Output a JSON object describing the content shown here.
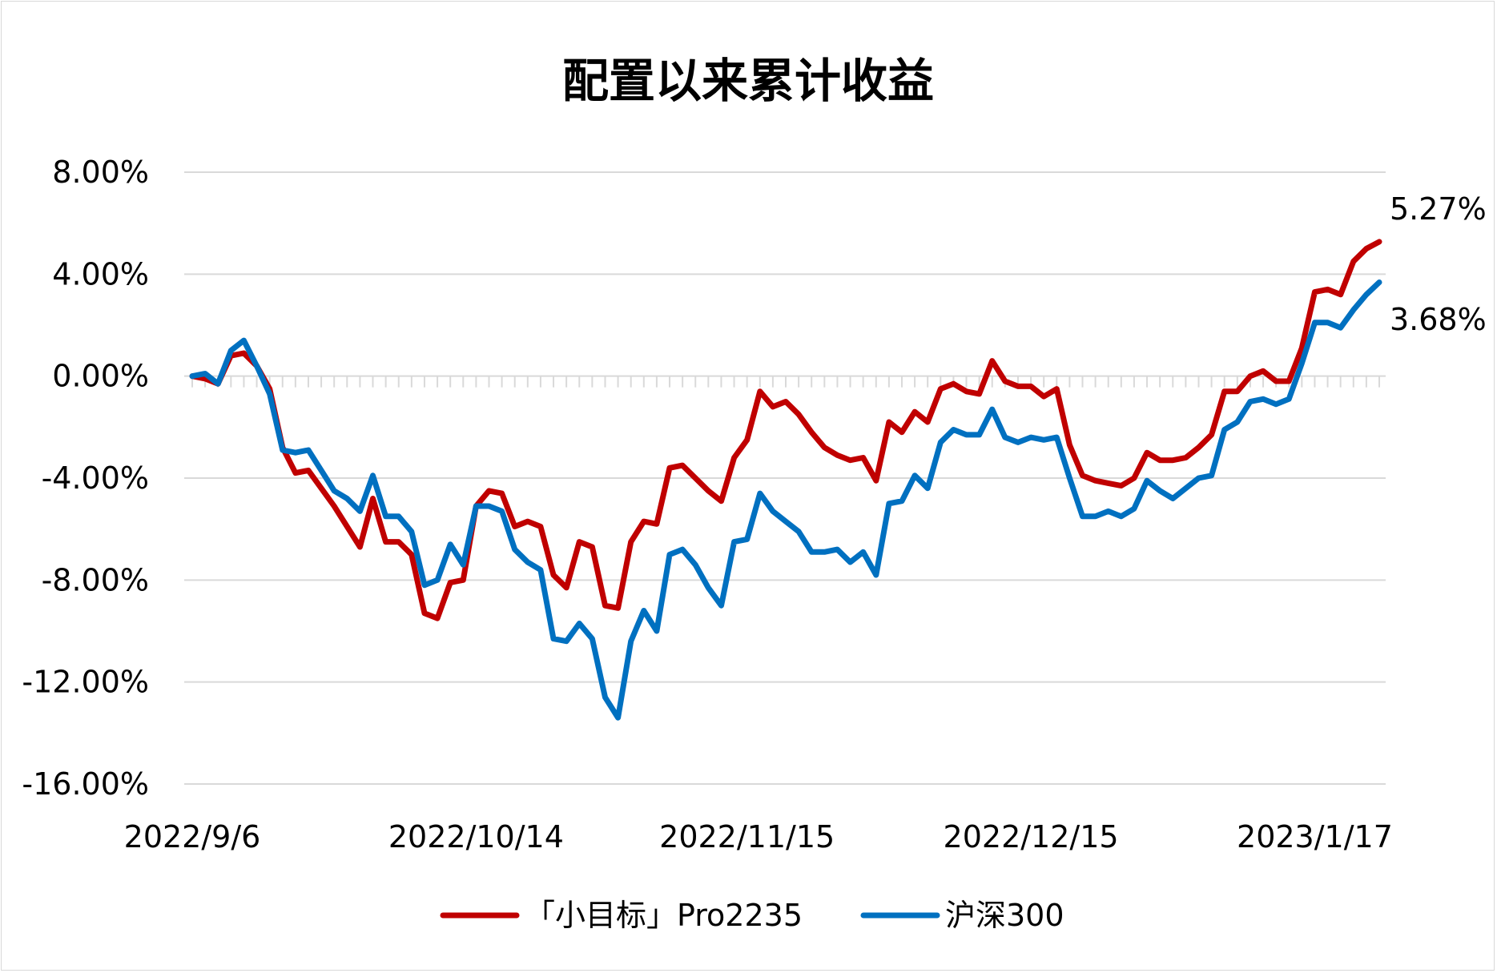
{
  "chart_data": {
    "type": "line",
    "title": "配置以来累计收益",
    "xlabel": "",
    "ylabel": "",
    "ylim": [
      -16,
      8
    ],
    "yticks": [
      8,
      4,
      0,
      -4,
      -8,
      -12,
      -16
    ],
    "ytick_labels": [
      "8.00%",
      "4.00%",
      "0.00%",
      "-4.00%",
      "-8.00%",
      "-12.00%",
      "-16.00%"
    ],
    "xtick_labels": [
      {
        "label": "2022/9/6",
        "index": 0
      },
      {
        "label": "2022/10/14",
        "index": 22
      },
      {
        "label": "2022/11/15",
        "index": 43
      },
      {
        "label": "2022/12/15",
        "index": 65
      },
      {
        "label": "2023/1/17",
        "index": 87
      }
    ],
    "grid": true,
    "legend_position": "bottom",
    "series": [
      {
        "name": "「小目标」Pro2235",
        "color": "#c00000",
        "end_label": "5.27%",
        "values": [
          0.0,
          -0.1,
          -0.3,
          0.8,
          0.9,
          0.4,
          -0.5,
          -2.8,
          -3.8,
          -3.7,
          -4.4,
          -5.1,
          -5.9,
          -6.7,
          -4.8,
          -6.5,
          -6.5,
          -7.0,
          -9.3,
          -9.5,
          -8.1,
          -8.0,
          -5.1,
          -4.5,
          -4.6,
          -5.9,
          -5.7,
          -5.9,
          -7.8,
          -8.3,
          -6.5,
          -6.7,
          -9.0,
          -9.1,
          -6.5,
          -5.7,
          -5.8,
          -3.6,
          -3.5,
          -4.0,
          -4.5,
          -4.9,
          -3.2,
          -2.5,
          -0.6,
          -1.2,
          -1.0,
          -1.5,
          -2.2,
          -2.8,
          -3.1,
          -3.3,
          -3.2,
          -4.1,
          -1.8,
          -2.2,
          -1.4,
          -1.8,
          -0.5,
          -0.3,
          -0.6,
          -0.7,
          0.6,
          -0.2,
          -0.4,
          -0.4,
          -0.8,
          -0.5,
          -2.7,
          -3.9,
          -4.1,
          -4.2,
          -4.3,
          -4.0,
          -3.0,
          -3.3,
          -3.3,
          -3.2,
          -2.8,
          -2.3,
          -0.6,
          -0.6,
          0.0,
          0.2,
          -0.2,
          -0.2,
          1.1,
          3.3,
          3.4,
          3.2,
          4.5,
          5.0,
          5.27
        ]
      },
      {
        "name": "沪深300",
        "color": "#0070c0",
        "end_label": "3.68%",
        "values": [
          0.0,
          0.1,
          -0.3,
          1.0,
          1.4,
          0.4,
          -0.7,
          -2.9,
          -3.0,
          -2.9,
          -3.7,
          -4.5,
          -4.8,
          -5.3,
          -3.9,
          -5.5,
          -5.5,
          -6.1,
          -8.2,
          -8.0,
          -6.6,
          -7.4,
          -5.1,
          -5.1,
          -5.3,
          -6.8,
          -7.3,
          -7.6,
          -10.3,
          -10.4,
          -9.7,
          -10.3,
          -12.6,
          -13.4,
          -10.4,
          -9.2,
          -10.0,
          -7.0,
          -6.8,
          -7.4,
          -8.3,
          -9.0,
          -6.5,
          -6.4,
          -4.6,
          -5.3,
          -5.7,
          -6.1,
          -6.9,
          -6.9,
          -6.8,
          -7.3,
          -6.9,
          -7.8,
          -5.0,
          -4.9,
          -3.9,
          -4.4,
          -2.6,
          -2.1,
          -2.3,
          -2.3,
          -1.3,
          -2.4,
          -2.6,
          -2.4,
          -2.5,
          -2.4,
          -4.0,
          -5.5,
          -5.5,
          -5.3,
          -5.5,
          -5.2,
          -4.1,
          -4.5,
          -4.8,
          -4.4,
          -4.0,
          -3.9,
          -2.1,
          -1.8,
          -1.0,
          -0.9,
          -1.1,
          -0.9,
          0.5,
          2.1,
          2.1,
          1.9,
          2.6,
          3.2,
          3.68
        ]
      }
    ]
  }
}
